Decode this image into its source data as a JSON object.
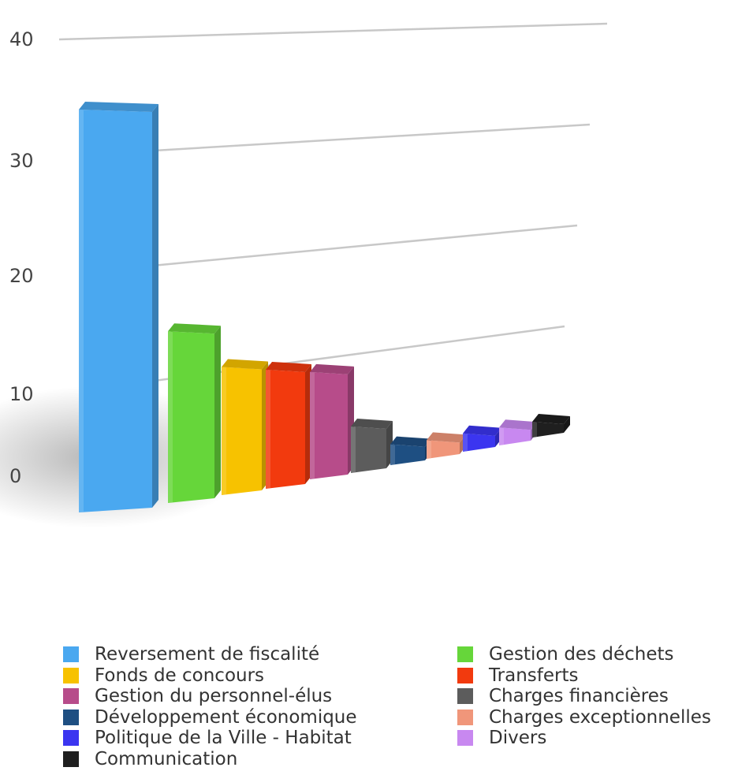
{
  "chart_data": {
    "type": "bar",
    "title": "",
    "xlabel": "",
    "ylabel": "",
    "ylim": [
      0,
      40
    ],
    "y_ticks": [
      "0",
      "10",
      "20",
      "30",
      "40"
    ],
    "grid": true,
    "legend_position": "bottom",
    "categories": [
      "Reversement de fiscalité",
      "Gestion des déchets",
      "Fonds de concours",
      "Transferts",
      "Gestion du personnel-élus",
      "Charges financières",
      "Développement économique",
      "Charges exceptionnelles",
      "Politique de la Ville - Habitat",
      "Divers",
      "Communication"
    ],
    "values": [
      36.5,
      16.5,
      12.5,
      11.8,
      10.8,
      4.8,
      2.2,
      2.0,
      2.0,
      2.0,
      1.5
    ],
    "colors": [
      "#4aa8f0",
      "#66d63a",
      "#f7c200",
      "#f23a0e",
      "#b74c8a",
      "#5c5c5c",
      "#1e4f82",
      "#f0967a",
      "#3b35f0",
      "#c888f0",
      "#1f1f1f"
    ]
  }
}
